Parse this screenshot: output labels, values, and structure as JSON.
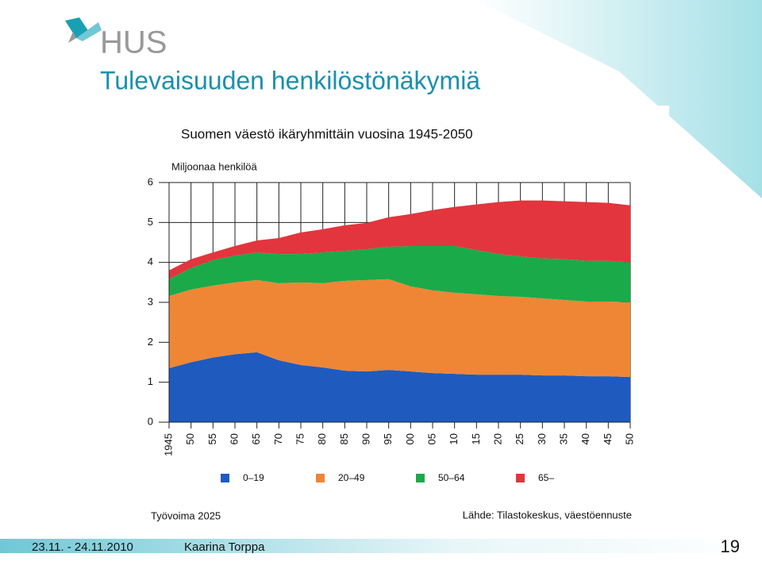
{
  "header": {
    "logo": "HUS",
    "title": "Tulevaisuuden henkilöstönäkymiä"
  },
  "chart_data": {
    "type": "stacked-area",
    "title": "Suomen väestö ikäryhmittäin vuosina 1945-2050",
    "y_label": "Miljoonaa henkilöä",
    "x": [
      1945,
      1950,
      1955,
      1960,
      1965,
      1970,
      1975,
      1980,
      1985,
      1990,
      1995,
      2000,
      2005,
      2010,
      2015,
      2020,
      2025,
      2030,
      2035,
      2040,
      2045,
      2050
    ],
    "xlim": [
      1945,
      2050
    ],
    "xticks": [
      1945,
      {
        "value": 1950,
        "label": "50"
      },
      {
        "value": 1955,
        "label": "55"
      },
      {
        "value": 1960,
        "label": "60"
      },
      {
        "value": 1965,
        "label": "65"
      },
      {
        "value": 1970,
        "label": "70"
      },
      {
        "value": 1975,
        "label": "75"
      },
      {
        "value": 1980,
        "label": "80"
      },
      {
        "value": 1985,
        "label": "85"
      },
      {
        "value": 1990,
        "label": "90"
      },
      {
        "value": 1995,
        "label": "95"
      },
      {
        "value": 2000,
        "label": "00"
      },
      {
        "value": 2005,
        "label": "05"
      },
      {
        "value": 2010,
        "label": "10"
      },
      {
        "value": 2015,
        "label": "15"
      },
      {
        "value": 2020,
        "label": "20"
      },
      {
        "value": 2025,
        "label": "25"
      },
      {
        "value": 2030,
        "label": "30"
      },
      {
        "value": 2035,
        "label": "35"
      },
      {
        "value": 2040,
        "label": "40"
      },
      {
        "value": 2045,
        "label": "45"
      },
      {
        "value": 2050,
        "label": "50"
      }
    ],
    "ylim": [
      0,
      6
    ],
    "yticks": [
      0,
      1,
      2,
      3,
      4,
      5,
      6
    ],
    "grid": true,
    "series": [
      {
        "name": "0–19",
        "color": "#1f5bbf",
        "values": [
          1.35,
          1.5,
          1.62,
          1.7,
          1.75,
          1.55,
          1.43,
          1.37,
          1.29,
          1.27,
          1.31,
          1.27,
          1.23,
          1.21,
          1.19,
          1.19,
          1.19,
          1.17,
          1.17,
          1.15,
          1.15,
          1.13
        ]
      },
      {
        "name": "20–49",
        "color": "#ef8636",
        "values": [
          1.81,
          1.82,
          1.8,
          1.8,
          1.81,
          1.93,
          2.07,
          2.11,
          2.25,
          2.29,
          2.27,
          2.13,
          2.07,
          2.03,
          2.01,
          1.97,
          1.95,
          1.93,
          1.89,
          1.87,
          1.87,
          1.87
        ]
      },
      {
        "name": "50–64",
        "color": "#1aaa4a",
        "values": [
          0.42,
          0.54,
          0.64,
          0.67,
          0.69,
          0.73,
          0.71,
          0.77,
          0.75,
          0.77,
          0.81,
          1.01,
          1.11,
          1.17,
          1.11,
          1.05,
          1.01,
          1.0,
          1.02,
          1.02,
          1.02,
          1.0
        ]
      },
      {
        "name": "65–",
        "color": "#e3353d",
        "values": [
          0.22,
          0.22,
          0.19,
          0.24,
          0.3,
          0.4,
          0.54,
          0.58,
          0.64,
          0.66,
          0.74,
          0.8,
          0.9,
          0.98,
          1.14,
          1.3,
          1.4,
          1.45,
          1.45,
          1.47,
          1.45,
          1.43
        ]
      }
    ],
    "footnote": "Työvoima 2025",
    "source": "Lähde: Tilastokeskus, väestöennuste"
  },
  "footer": {
    "date": "23.11. - 24.11.2010",
    "author": "Kaarina Torppa",
    "page": "19"
  }
}
